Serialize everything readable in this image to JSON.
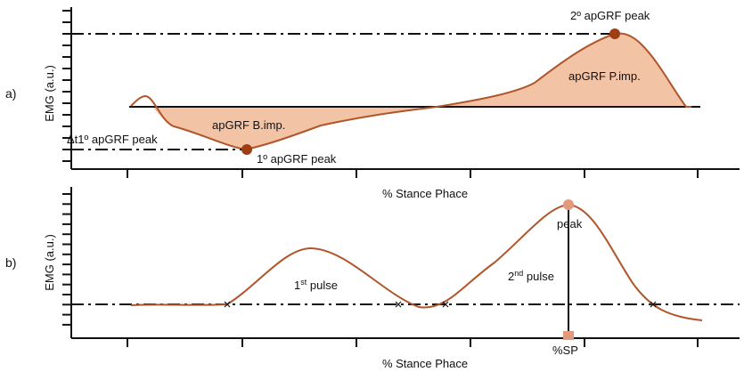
{
  "colors": {
    "curve": "#b0562a",
    "fill": "#f3c3a6",
    "peak_marker": "#9e3e14",
    "panel_b_marker": "#e39a7c",
    "axis": "#111111"
  },
  "panel_a": {
    "letter": "a)",
    "ylabel": "EMG (a.u.)",
    "xlabel": "% Stance Phace",
    "peak2_label": "2º apGRF peak",
    "peak1_label": "1º apGRF peak",
    "delta_label": "Δt1º apGRF peak",
    "braking_label": "apGRF B.imp.",
    "propulsive_label": "apGRF P.imp."
  },
  "panel_b": {
    "letter": "b)",
    "ylabel": "EMG (a.u.)",
    "xlabel": "% Stance Phace",
    "pulse1_label": "1",
    "pulse1_sup": "st",
    "pulse1_suffix": " pulse",
    "pulse2_label": "2",
    "pulse2_sup": "nd",
    "pulse2_suffix": " pulse",
    "peak_label": "peak",
    "sp_label": "%SP"
  }
}
